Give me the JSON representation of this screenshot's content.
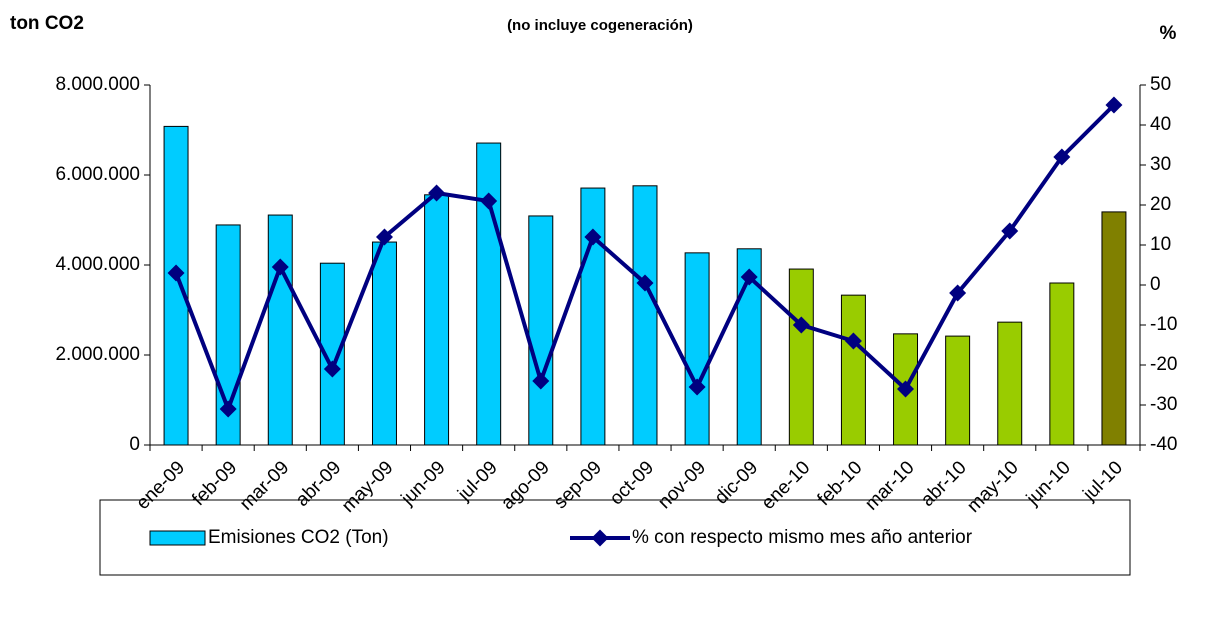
{
  "chart_data": {
    "type": "bar",
    "subtitle": "(no incluye cogeneración)",
    "y_label": "ton CO2",
    "y2_label": "%",
    "categories": [
      "ene-09",
      "feb-09",
      "mar-09",
      "abr-09",
      "may-09",
      "jun-09",
      "jul-09",
      "ago-09",
      "sep-09",
      "oct-09",
      "nov-09",
      "dic-09",
      "ene-10",
      "feb-10",
      "mar-10",
      "abr-10",
      "may-10",
      "jun-10",
      "jul-10"
    ],
    "series": [
      {
        "name": "Emisiones CO2 (Ton)",
        "type": "bar",
        "color": "#00ccff",
        "colors": [
          "#00ccff",
          "#00ccff",
          "#00ccff",
          "#00ccff",
          "#00ccff",
          "#00ccff",
          "#00ccff",
          "#00ccff",
          "#00ccff",
          "#00ccff",
          "#00ccff",
          "#00ccff",
          "#99cc00",
          "#99cc00",
          "#99cc00",
          "#99cc00",
          "#99cc00",
          "#99cc00",
          "#808000"
        ],
        "values": [
          7080000,
          4890000,
          5110000,
          4040000,
          4510000,
          5560000,
          6710000,
          5090000,
          5710000,
          5760000,
          4270000,
          4360000,
          3910000,
          3330000,
          2470000,
          2420000,
          2730000,
          3600000,
          5180000
        ]
      },
      {
        "name": "% con respecto mismo mes año anterior",
        "type": "line",
        "color": "#000080",
        "axis": "y2",
        "values": [
          3,
          -31,
          4.5,
          -21,
          12,
          23,
          21,
          -24,
          12,
          0.5,
          -25.5,
          2,
          -10,
          -14,
          -26,
          -2,
          13.5,
          32,
          45
        ]
      }
    ],
    "ylim": [
      0,
      8000000
    ],
    "yticks": [
      {
        "value": 0,
        "label": "0"
      },
      {
        "value": 2000000,
        "label": "2.000.000"
      },
      {
        "value": 4000000,
        "label": "4.000.000"
      },
      {
        "value": 6000000,
        "label": "6.000.000"
      },
      {
        "value": 8000000,
        "label": "8.000.000"
      }
    ],
    "y2lim": [
      -40,
      50
    ],
    "y2ticks": [
      -40,
      -30,
      -20,
      -10,
      0,
      10,
      20,
      30,
      40,
      50
    ],
    "legend": "bottom"
  }
}
